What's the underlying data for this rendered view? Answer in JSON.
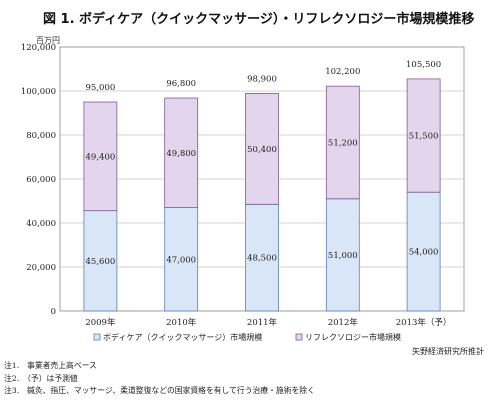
{
  "chart_data": {
    "type": "bar",
    "stacked": true,
    "title": "図 1. ボディケア（クイックマッサージ）・リフレクソロジー市場規模推移",
    "unit": "百万円",
    "categories": [
      "2009年",
      "2010年",
      "2011年",
      "2012年",
      "2013年（予）"
    ],
    "series": [
      {
        "name": "ボディケア（クイックマッサージ）市場規模",
        "values": [
          45600,
          47000,
          48500,
          51000,
          54000
        ],
        "value_labels": [
          "45,600",
          "47,000",
          "48,500",
          "51,000",
          "54,000"
        ],
        "color": "#d9e6f7"
      },
      {
        "name": "リフレクソロジー市場規模",
        "values": [
          49400,
          49800,
          50400,
          51200,
          51500
        ],
        "value_labels": [
          "49,400",
          "49,800",
          "50,400",
          "51,200",
          "51,500"
        ],
        "color": "#e3d5ec"
      }
    ],
    "totals": [
      95000,
      96800,
      98900,
      102200,
      105500
    ],
    "total_labels": [
      "95,000",
      "96,800",
      "98,900",
      "102,200",
      "105,500"
    ],
    "ylim": [
      0,
      120000
    ],
    "yticks": [
      0,
      20000,
      40000,
      60000,
      80000,
      100000,
      120000
    ],
    "ytick_labels": [
      "0",
      "20,000",
      "40,000",
      "60,000",
      "80,000",
      "100,000",
      "120,000"
    ],
    "grid": true,
    "legend_position": "bottom"
  },
  "source": "矢野経済研究所推計",
  "notes": [
    "注1.　事業者売上高ベース",
    "注2.　（予）は予測値",
    "注3.　鍼灸、指圧、マッサージ、柔道整復などの国家資格を有して行う治療・施術を除く"
  ]
}
